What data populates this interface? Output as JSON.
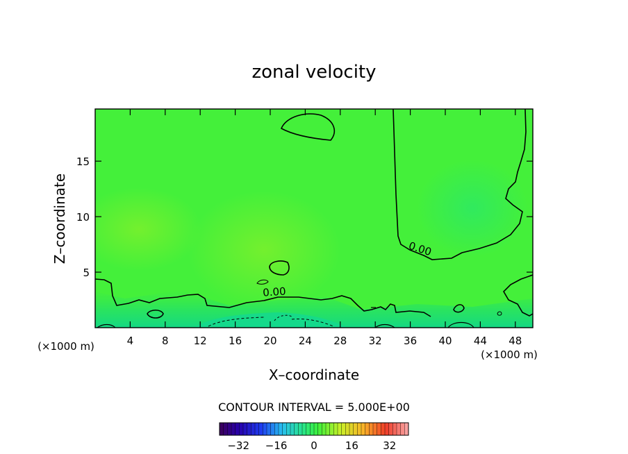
{
  "chart_data": {
    "type": "heatmap",
    "title": "zonal velocity",
    "xlabel": "X–coordinate",
    "ylabel": "Z–coordinate",
    "x_unit_label": "(×1000 m)",
    "z_unit_label": "(×1000 m)",
    "xlim": [
      0,
      50
    ],
    "ylim": [
      0,
      19.7
    ],
    "x_ticks": [
      4,
      8,
      12,
      16,
      20,
      24,
      28,
      32,
      36,
      40,
      44,
      48
    ],
    "y_ticks": [
      5,
      10,
      15
    ],
    "contour_interval_text": "CONTOUR INTERVAL = 5.000E+00",
    "contour_labels": [
      {
        "text": "0.00",
        "x": 20.5,
        "z": 2.9
      },
      {
        "text": "0.00",
        "x": 37.0,
        "z": 6.8
      }
    ],
    "colorbar": {
      "range": [
        -40,
        40
      ],
      "ticks": [
        -32,
        -16,
        0,
        16,
        32
      ],
      "tick_labels": [
        "−32",
        "−16",
        "0",
        "16",
        "32"
      ]
    },
    "colors": {
      "field_main": "#44f03a",
      "field_light": "#5cf034",
      "field_lower": "#22e060",
      "field_bottom": "#19dc78"
    }
  }
}
